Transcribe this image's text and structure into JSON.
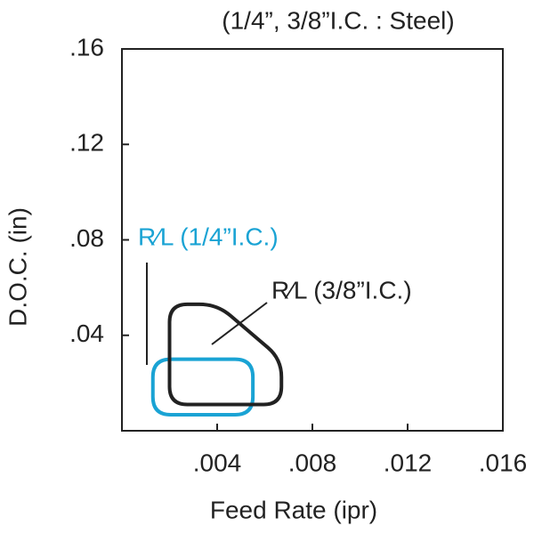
{
  "chart_data": {
    "type": "region",
    "title": "(1/4”, 3/8”I.C. : Steel)",
    "x_label": "Feed Rate (ipr)",
    "y_label": "D.O.C. (in)",
    "xlim": [
      0,
      0.016
    ],
    "ylim": [
      0,
      0.16
    ],
    "xticks": [
      {
        "value": 0.004,
        "label": ".004"
      },
      {
        "value": 0.008,
        "label": ".008"
      },
      {
        "value": 0.012,
        "label": ".012"
      },
      {
        "value": 0.016,
        "label": ".016"
      }
    ],
    "yticks": [
      {
        "value": 0.04,
        "label": ".04"
      },
      {
        "value": 0.08,
        "label": ".08"
      },
      {
        "value": 0.12,
        "label": ".12"
      },
      {
        "value": 0.16,
        "label": ".16"
      }
    ],
    "series": [
      {
        "name": "R⁄L (1/4”I.C.)",
        "color": "#1aa3d4",
        "x": [
          0.0013,
          0.0013,
          0.0055,
          0.0055
        ],
        "y": [
          0.0067,
          0.03,
          0.03,
          0.0067
        ]
      },
      {
        "name": "R⁄L (3/8”I.C.)",
        "color": "#222222",
        "x": [
          0.002,
          0.002,
          0.004,
          0.0067,
          0.0067
        ],
        "y": [
          0.011,
          0.053,
          0.053,
          0.03,
          0.011
        ]
      }
    ]
  }
}
